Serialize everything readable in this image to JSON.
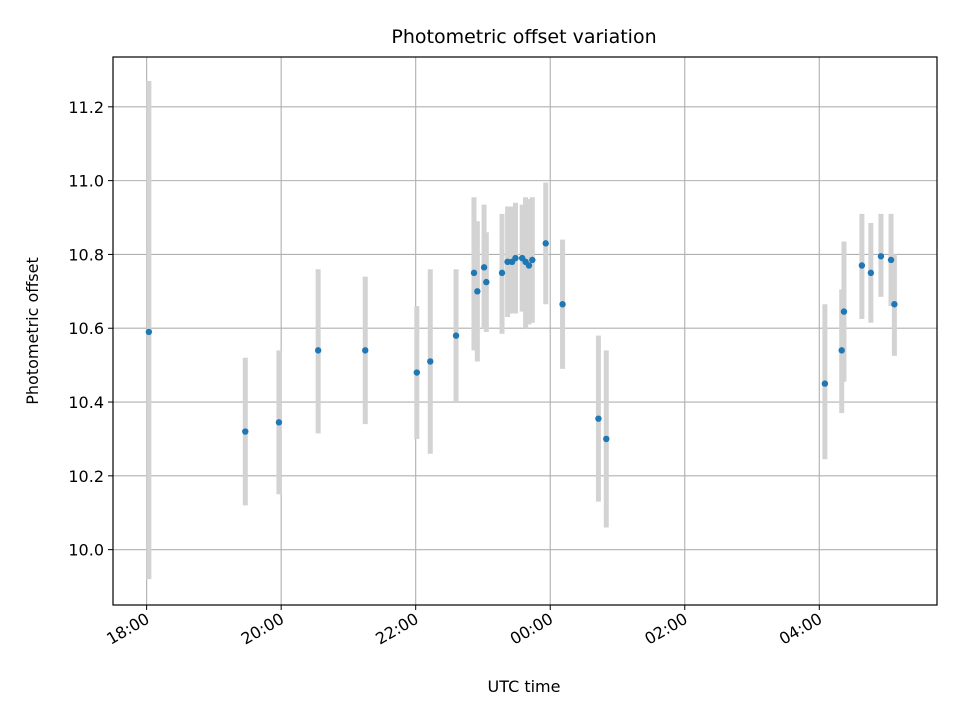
{
  "chart_data": {
    "type": "scatter",
    "title": "Photometric offset variation",
    "xlabel": "UTC time",
    "ylabel": "Photometric offset",
    "x_unit": "hours",
    "x_ticks": [
      {
        "hour": 18,
        "label": "18:00"
      },
      {
        "hour": 20,
        "label": "20:00"
      },
      {
        "hour": 22,
        "label": "22:00"
      },
      {
        "hour": 24,
        "label": "00:00"
      },
      {
        "hour": 26,
        "label": "02:00"
      },
      {
        "hour": 28,
        "label": "04:00"
      }
    ],
    "y_ticks": [
      10.0,
      10.2,
      10.4,
      10.6,
      10.8,
      11.0,
      11.2
    ],
    "xlim": [
      "17:30",
      "05:45"
    ],
    "ylim": [
      9.85,
      11.335
    ],
    "grid": true,
    "colors": {
      "points": "#1f77b4",
      "errorbars": "#d3d3d3",
      "grid": "#b0b0b0"
    },
    "points": [
      {
        "x": "18:02",
        "y": 10.59,
        "ylow": 9.92,
        "yhigh": 11.27
      },
      {
        "x": "19:28",
        "y": 10.32,
        "ylow": 10.12,
        "yhigh": 10.52
      },
      {
        "x": "19:58",
        "y": 10.345,
        "ylow": 10.15,
        "yhigh": 10.54
      },
      {
        "x": "20:33",
        "y": 10.54,
        "ylow": 10.315,
        "yhigh": 10.76
      },
      {
        "x": "21:15",
        "y": 10.54,
        "ylow": 10.34,
        "yhigh": 10.74
      },
      {
        "x": "22:01",
        "y": 10.48,
        "ylow": 10.3,
        "yhigh": 10.66
      },
      {
        "x": "22:13",
        "y": 10.51,
        "ylow": 10.26,
        "yhigh": 10.76
      },
      {
        "x": "22:36",
        "y": 10.58,
        "ylow": 10.4,
        "yhigh": 10.76
      },
      {
        "x": "22:52",
        "y": 10.75,
        "ylow": 10.54,
        "yhigh": 10.955
      },
      {
        "x": "22:55",
        "y": 10.7,
        "ylow": 10.51,
        "yhigh": 10.89
      },
      {
        "x": "23:01",
        "y": 10.765,
        "ylow": 10.6,
        "yhigh": 10.935
      },
      {
        "x": "23:03",
        "y": 10.725,
        "ylow": 10.59,
        "yhigh": 10.86
      },
      {
        "x": "23:17",
        "y": 10.75,
        "ylow": 10.585,
        "yhigh": 10.91
      },
      {
        "x": "23:22",
        "y": 10.78,
        "ylow": 10.63,
        "yhigh": 10.93
      },
      {
        "x": "23:26",
        "y": 10.78,
        "ylow": 10.64,
        "yhigh": 10.93
      },
      {
        "x": "23:29",
        "y": 10.79,
        "ylow": 10.64,
        "yhigh": 10.94
      },
      {
        "x": "23:35",
        "y": 10.79,
        "ylow": 10.645,
        "yhigh": 10.935
      },
      {
        "x": "23:38",
        "y": 10.78,
        "ylow": 10.6,
        "yhigh": 10.955
      },
      {
        "x": "23:41",
        "y": 10.77,
        "ylow": 10.61,
        "yhigh": 10.95
      },
      {
        "x": "23:44",
        "y": 10.785,
        "ylow": 10.615,
        "yhigh": 10.955
      },
      {
        "x": "23:56",
        "y": 10.83,
        "ylow": 10.665,
        "yhigh": 10.995
      },
      {
        "x": "00:11",
        "y": 10.665,
        "ylow": 10.49,
        "yhigh": 10.84
      },
      {
        "x": "00:43",
        "y": 10.355,
        "ylow": 10.13,
        "yhigh": 10.58
      },
      {
        "x": "00:50",
        "y": 10.3,
        "ylow": 10.06,
        "yhigh": 10.54
      },
      {
        "x": "04:05",
        "y": 10.45,
        "ylow": 10.245,
        "yhigh": 10.665
      },
      {
        "x": "04:20",
        "y": 10.54,
        "ylow": 10.37,
        "yhigh": 10.705
      },
      {
        "x": "04:22",
        "y": 10.645,
        "ylow": 10.455,
        "yhigh": 10.835
      },
      {
        "x": "04:38",
        "y": 10.77,
        "ylow": 10.625,
        "yhigh": 10.91
      },
      {
        "x": "04:46",
        "y": 10.75,
        "ylow": 10.615,
        "yhigh": 10.885
      },
      {
        "x": "04:55",
        "y": 10.795,
        "ylow": 10.685,
        "yhigh": 10.91
      },
      {
        "x": "05:04",
        "y": 10.785,
        "ylow": 10.66,
        "yhigh": 10.91
      },
      {
        "x": "05:07",
        "y": 10.665,
        "ylow": 10.525,
        "yhigh": 10.8
      }
    ]
  }
}
